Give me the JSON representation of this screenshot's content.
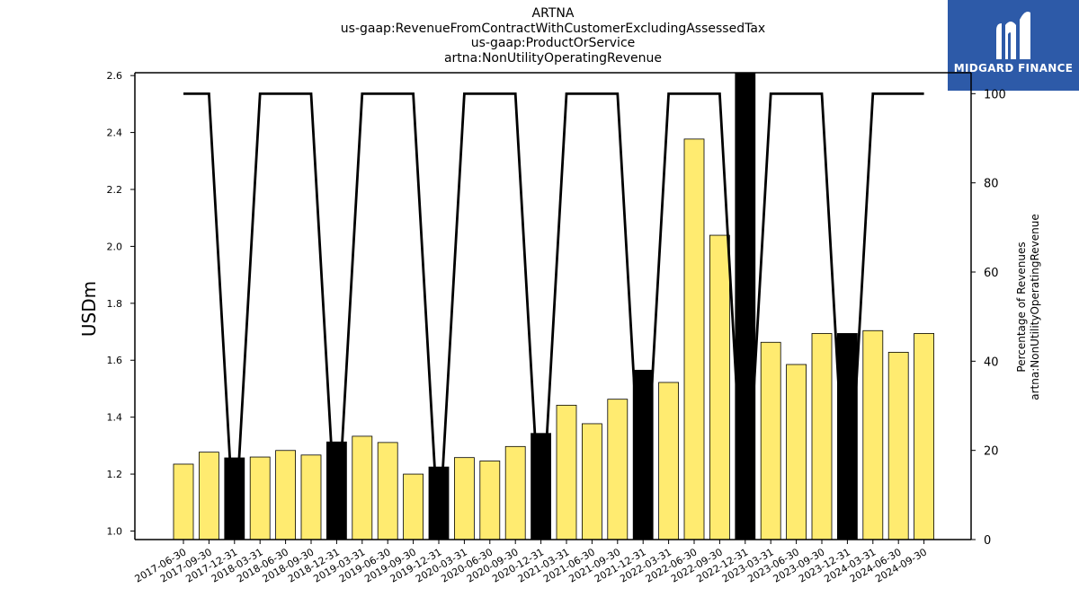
{
  "title_lines": [
    "ARTNA",
    "us-gaap:RevenueFromContractWithCustomerExcludingAssessedTax",
    "us-gaap:ProductOrService",
    "artna:NonUtilityOperatingRevenue"
  ],
  "logo": {
    "text": "MIDGARD FINANCE",
    "icon": "midgard-logo-icon",
    "background": "#2d5aa8"
  },
  "chart_data": {
    "type": "bar",
    "ylabel": "USDm",
    "y2label_lines": [
      "Percentage of Revenues",
      "artna:NonUtilityOperatingRevenue"
    ],
    "ylim": [
      0.97,
      2.61
    ],
    "y2lim": [
      0,
      104.7
    ],
    "yticks": [
      "1.0",
      "1.2",
      "1.4",
      "1.6",
      "1.8",
      "2.0",
      "2.2",
      "2.4",
      "2.6"
    ],
    "y2ticks": [
      "0",
      "20",
      "40",
      "60",
      "80",
      "100"
    ],
    "categories": [
      "2017-06-30",
      "2017-09-30",
      "2017-12-31",
      "2018-03-31",
      "2018-06-30",
      "2018-09-30",
      "2018-12-31",
      "2019-03-31",
      "2019-06-30",
      "2019-09-30",
      "2019-12-31",
      "2020-03-31",
      "2020-06-30",
      "2020-09-30",
      "2020-12-31",
      "2021-03-31",
      "2021-06-30",
      "2021-09-30",
      "2021-12-31",
      "2022-03-31",
      "2022-06-30",
      "2022-09-30",
      "2022-12-31",
      "2023-03-31",
      "2023-06-30",
      "2023-09-30",
      "2023-12-31",
      "2024-03-31",
      "2024-06-30",
      "2024-09-30"
    ],
    "values": [
      1.235,
      1.277,
      1.257,
      1.26,
      1.283,
      1.267,
      1.313,
      1.333,
      1.311,
      1.2,
      1.225,
      1.258,
      1.246,
      1.297,
      1.343,
      1.442,
      1.377,
      1.463,
      1.565,
      1.522,
      2.377,
      2.039,
      2.61,
      1.663,
      1.585,
      1.694,
      1.694,
      1.704,
      1.628,
      1.694
    ],
    "bar_colors": [
      "#ffeb70",
      "#ffeb70",
      "#000000",
      "#ffeb70",
      "#ffeb70",
      "#ffeb70",
      "#000000",
      "#ffeb70",
      "#ffeb70",
      "#ffeb70",
      "#000000",
      "#ffeb70",
      "#ffeb70",
      "#ffeb70",
      "#000000",
      "#ffeb70",
      "#ffeb70",
      "#ffeb70",
      "#000000",
      "#ffeb70",
      "#ffeb70",
      "#ffeb70",
      "#000000",
      "#ffeb70",
      "#ffeb70",
      "#ffeb70",
      "#000000",
      "#ffeb70",
      "#ffeb70",
      "#ffeb70"
    ],
    "percentage": [
      100,
      100,
      0,
      100,
      100,
      100,
      0,
      100,
      100,
      100,
      0,
      100,
      100,
      100,
      0,
      100,
      100,
      100,
      0,
      100,
      100,
      100,
      0,
      100,
      100,
      100,
      0,
      100,
      100,
      100
    ],
    "line_color": "#000000"
  }
}
